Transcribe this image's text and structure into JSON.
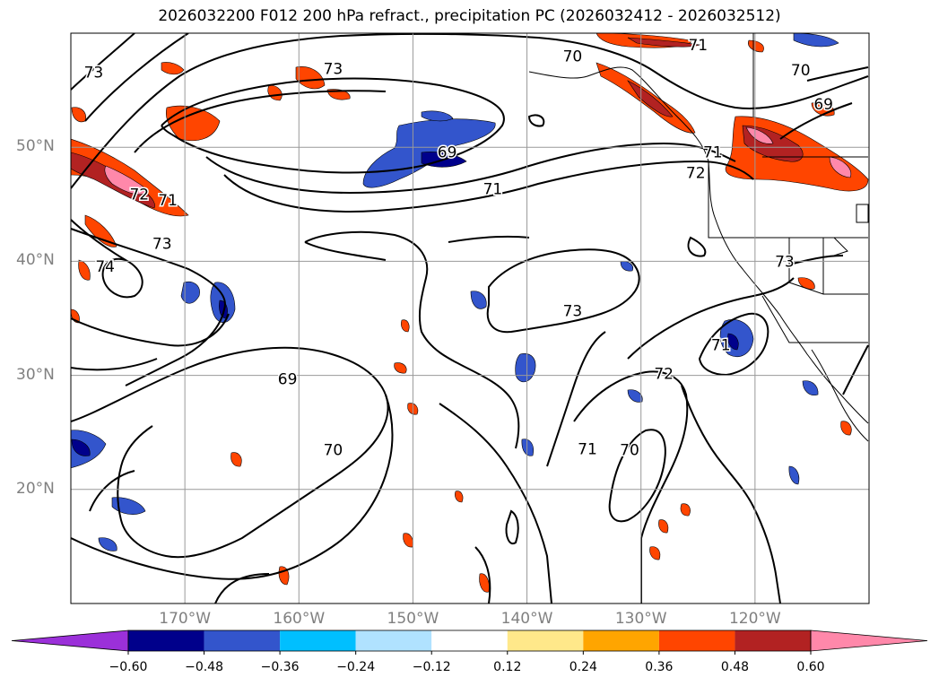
{
  "title": "2026032200 F012 200 hPa refract., precipitation PC (2026032412 - 2026032512)",
  "latitude_labels": [
    {
      "label": "50°N",
      "value": 50
    },
    {
      "label": "40°N",
      "value": 40
    },
    {
      "label": "30°N",
      "value": 30
    },
    {
      "label": "20°N",
      "value": 20
    }
  ],
  "longitude_labels": [
    {
      "label": "170°W",
      "value": -170
    },
    {
      "label": "160°W",
      "value": -160
    },
    {
      "label": "150°W",
      "value": -150
    },
    {
      "label": "140°W",
      "value": -140
    },
    {
      "label": "130°W",
      "value": -130
    },
    {
      "label": "120°W",
      "value": -120
    }
  ],
  "map_extent": {
    "lon_min": -180,
    "lon_max": -110,
    "lat_min": 10,
    "lat_max": 60
  },
  "colorbar": {
    "tick_labels": [
      "−0.60",
      "−0.48",
      "−0.36",
      "−0.24",
      "−0.12",
      "0.12",
      "0.24",
      "0.36",
      "0.48",
      "0.60"
    ],
    "bins": [
      {
        "color": "#9b30d9"
      },
      {
        "color": "#00008b"
      },
      {
        "color": "#3355cc"
      },
      {
        "color": "#00bfff"
      },
      {
        "color": "#b0e2ff"
      },
      {
        "color": "#ffffff"
      },
      {
        "color": "#ffe88a"
      },
      {
        "color": "#ffa500"
      },
      {
        "color": "#ff4500"
      },
      {
        "color": "#b22222"
      },
      {
        "color": "#ff88aa"
      }
    ]
  },
  "contour_labels": [
    {
      "text": "73",
      "lon": -178,
      "lat": 56.5
    },
    {
      "text": "73",
      "lon": -157,
      "lat": 56.8
    },
    {
      "text": "70",
      "lon": -136,
      "lat": 57.9
    },
    {
      "text": "71",
      "lon": -125,
      "lat": 58.9
    },
    {
      "text": "70",
      "lon": -116,
      "lat": 56.7
    },
    {
      "text": "69",
      "lon": -114,
      "lat": 53.7
    },
    {
      "text": "69",
      "lon": -147,
      "lat": 49.5
    },
    {
      "text": "71",
      "lon": -143,
      "lat": 46.3
    },
    {
      "text": "71",
      "lon": -123.7,
      "lat": 49.5
    },
    {
      "text": "72",
      "lon": -125.2,
      "lat": 47.7
    },
    {
      "text": "72",
      "lon": -174,
      "lat": 45.8
    },
    {
      "text": "71",
      "lon": -171.5,
      "lat": 45.3
    },
    {
      "text": "73",
      "lon": -172,
      "lat": 41.5
    },
    {
      "text": "74",
      "lon": -177,
      "lat": 39.5
    },
    {
      "text": "73",
      "lon": -117.4,
      "lat": 39.9
    },
    {
      "text": "73",
      "lon": -136,
      "lat": 35.6
    },
    {
      "text": "71",
      "lon": -123,
      "lat": 32.6
    },
    {
      "text": "72",
      "lon": -128,
      "lat": 30.1
    },
    {
      "text": "69",
      "lon": -161,
      "lat": 29.6
    },
    {
      "text": "70",
      "lon": -157,
      "lat": 23.4
    },
    {
      "text": "71",
      "lon": -134.7,
      "lat": 23.5
    },
    {
      "text": "70",
      "lon": -131,
      "lat": 23.4
    }
  ]
}
